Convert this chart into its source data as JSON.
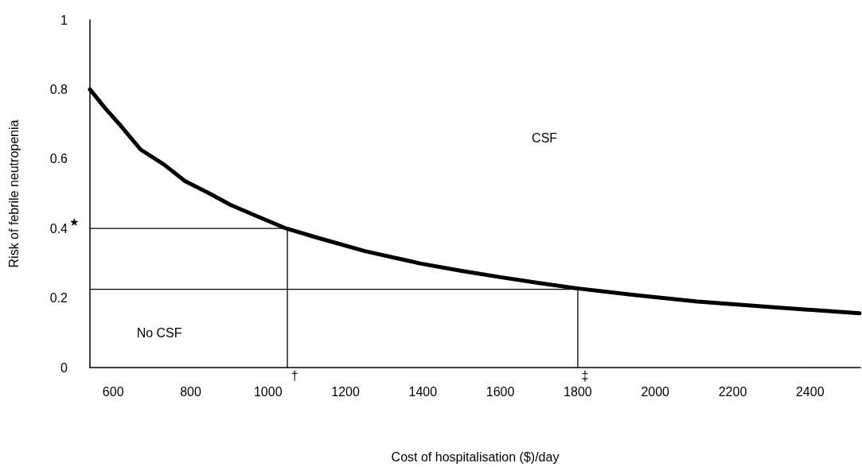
{
  "chart_data": {
    "type": "line",
    "xlabel": "Cost of hospitalisation ($)/day",
    "ylabel": "Risk of febrile neutropenia",
    "x": [
      540,
      580,
      620,
      671,
      730,
      786,
      850,
      903,
      970,
      1047,
      1129,
      1250,
      1395,
      1500,
      1600,
      1700,
      1797,
      1950,
      2109,
      2300,
      2528
    ],
    "series": [
      {
        "color": "#000000",
        "values": [
          0.8,
          0.745,
          0.695,
          0.627,
          0.585,
          0.536,
          0.5,
          0.468,
          0.436,
          0.4,
          0.373,
          0.335,
          0.299,
          0.278,
          0.26,
          0.243,
          0.228,
          0.208,
          0.19,
          0.174,
          0.156
        ]
      }
    ],
    "xlim": [
      540,
      2530
    ],
    "xticks": [
      600,
      800,
      1000,
      1200,
      1400,
      1600,
      1800,
      2000,
      2200,
      2400
    ],
    "ylim": [
      0,
      1
    ],
    "yticks": [
      0,
      0.2,
      0.4,
      0.6,
      0.8,
      1
    ],
    "ref_lines": [
      {
        "axis": "y",
        "value": 0.4,
        "label": "★"
      },
      {
        "axis": "x",
        "value": 1050,
        "label": "†"
      },
      {
        "axis": "y",
        "value": 0.225,
        "label": null
      },
      {
        "axis": "x",
        "value": 1800,
        "label": "‡"
      }
    ],
    "annotations": [
      "CSF",
      "No CSF"
    ],
    "grid": false,
    "marker": "none",
    "line_style": "solid"
  }
}
